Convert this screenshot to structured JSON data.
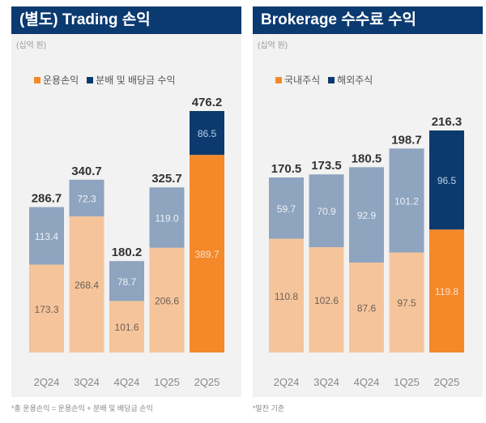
{
  "chart_data": [
    {
      "type": "bar",
      "stacked": true,
      "title": "(별도) Trading 손익",
      "unit": "(십억 원)",
      "categories": [
        "2Q24",
        "3Q24",
        "4Q24",
        "1Q25",
        "2Q25"
      ],
      "series": [
        {
          "name": "운용손익",
          "values": [
            173.3,
            268.4,
            101.6,
            206.6,
            389.7
          ]
        },
        {
          "name": "분배 및 배당금 수익",
          "values": [
            113.4,
            72.3,
            78.7,
            119.0,
            86.5
          ]
        }
      ],
      "totals": [
        286.7,
        340.7,
        180.2,
        325.7,
        476.2
      ],
      "note": "*총 운용손익 = 운용손익 + 분배 및 배당금 손익",
      "colors": {
        "s0": "#f6c49b",
        "s1": "#8ea4bf",
        "s0_highlight": "#f4892a",
        "s1_highlight": "#0d3a6e",
        "legend0": "#f4892a",
        "legend1": "#0d3a6e"
      },
      "highlight_index": 4,
      "ylim": [
        0,
        476.2
      ]
    },
    {
      "type": "bar",
      "stacked": true,
      "title": "Brokerage 수수료 수익",
      "unit": "(십억 원)",
      "categories": [
        "2Q24",
        "3Q24",
        "4Q24",
        "1Q25",
        "2Q25"
      ],
      "series": [
        {
          "name": "국내주식",
          "values": [
            110.8,
            102.6,
            87.6,
            97.5,
            119.8
          ]
        },
        {
          "name": "해외주식",
          "values": [
            59.7,
            70.9,
            92.9,
            101.2,
            96.5
          ]
        }
      ],
      "totals": [
        170.5,
        173.5,
        180.5,
        198.7,
        216.3
      ],
      "note": "*말잔 기준",
      "colors": {
        "s0": "#f6c49b",
        "s1": "#8ea4bf",
        "s0_highlight": "#f4892a",
        "s1_highlight": "#0d3a6e",
        "legend0": "#f4892a",
        "legend1": "#0d3a6e"
      },
      "highlight_index": 4,
      "ylim": [
        0,
        216.3
      ]
    }
  ]
}
